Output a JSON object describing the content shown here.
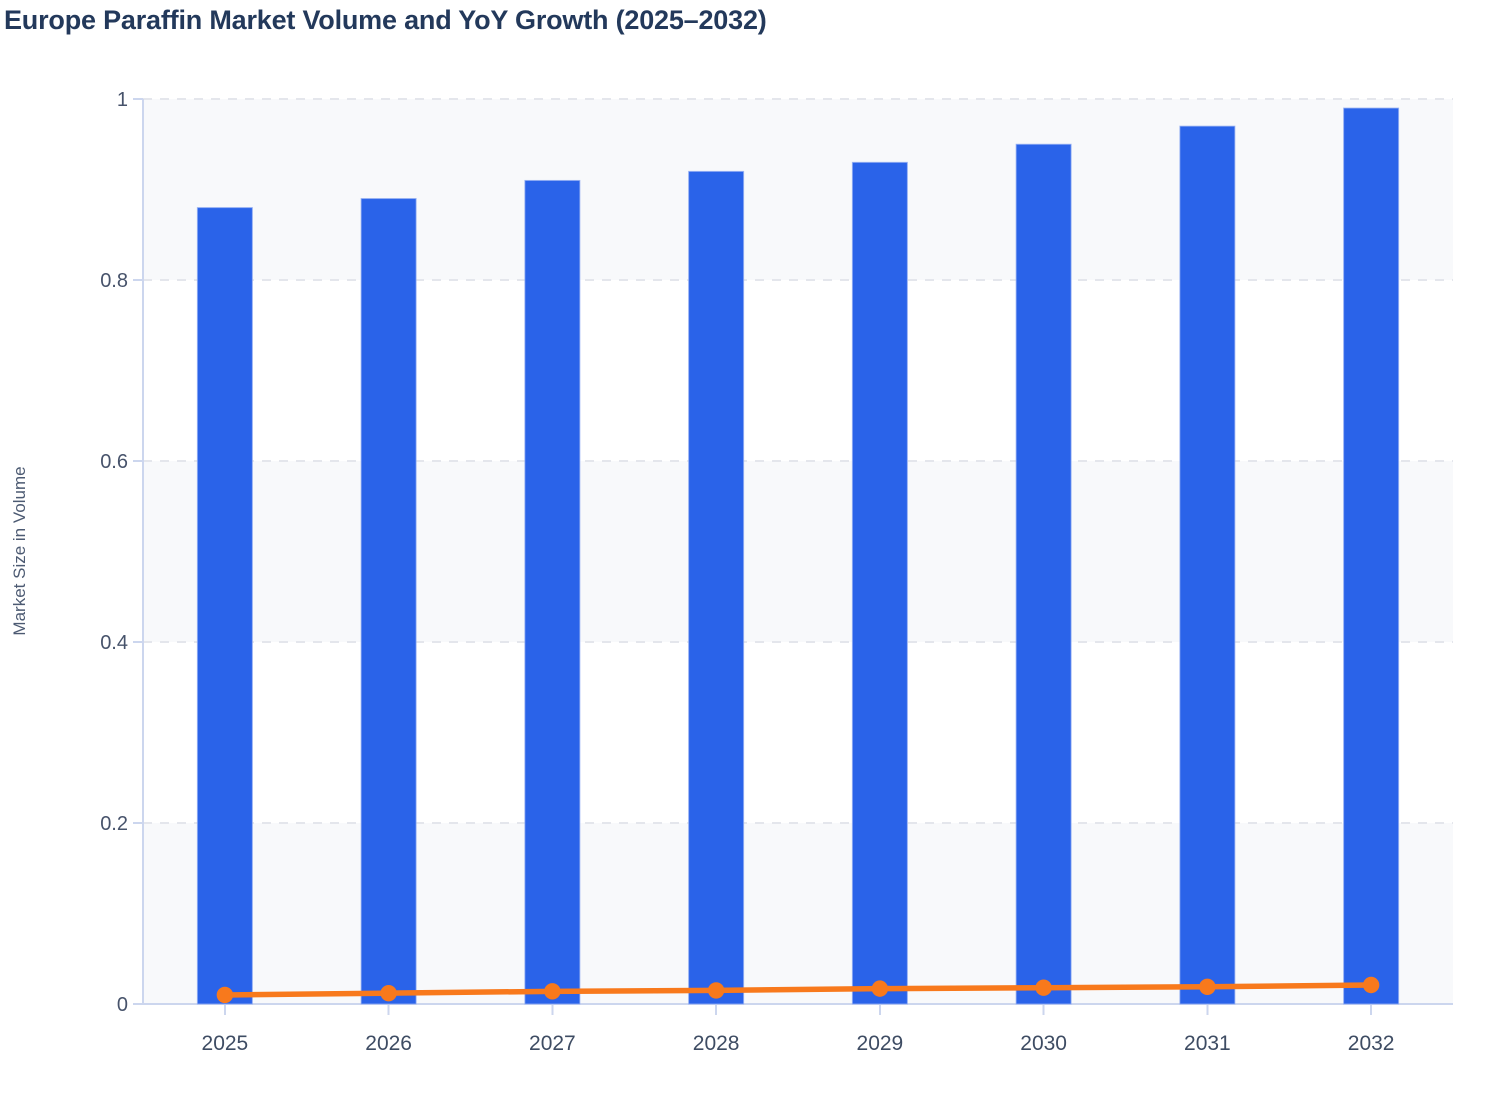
{
  "chart_data": {
    "type": "bar",
    "title": "Europe Paraffin Market Volume and YoY Growth (2025–2032)",
    "ylabel": "Market Size in Volume",
    "xlabel": "",
    "categories": [
      "2025",
      "2026",
      "2027",
      "2028",
      "2029",
      "2030",
      "2031",
      "2032"
    ],
    "series": [
      {
        "name": "Market Size in Volume",
        "type": "bar",
        "color": "#2a63e9",
        "values": [
          0.88,
          0.89,
          0.91,
          0.92,
          0.93,
          0.95,
          0.97,
          0.99
        ]
      },
      {
        "name": "YoY Growth",
        "type": "line",
        "color": "#f8791c",
        "values": [
          0.01,
          0.012,
          0.014,
          0.015,
          0.017,
          0.018,
          0.019,
          0.021
        ]
      }
    ],
    "ylim": [
      0,
      1
    ],
    "y_ticks": [
      0,
      0.2,
      0.4,
      0.6,
      0.8,
      1
    ],
    "legend": "none",
    "grid": {
      "horizontal": true,
      "style": "dashed",
      "color": "#e4e6ec"
    },
    "plot_band_colors": [
      "#f8f9fb",
      "#ffffff"
    ],
    "axis_color": "#ccd6ee",
    "bar_stroke_color": "#93aef2",
    "title_color": "#23395b",
    "tick_label_color": "#47536b"
  }
}
